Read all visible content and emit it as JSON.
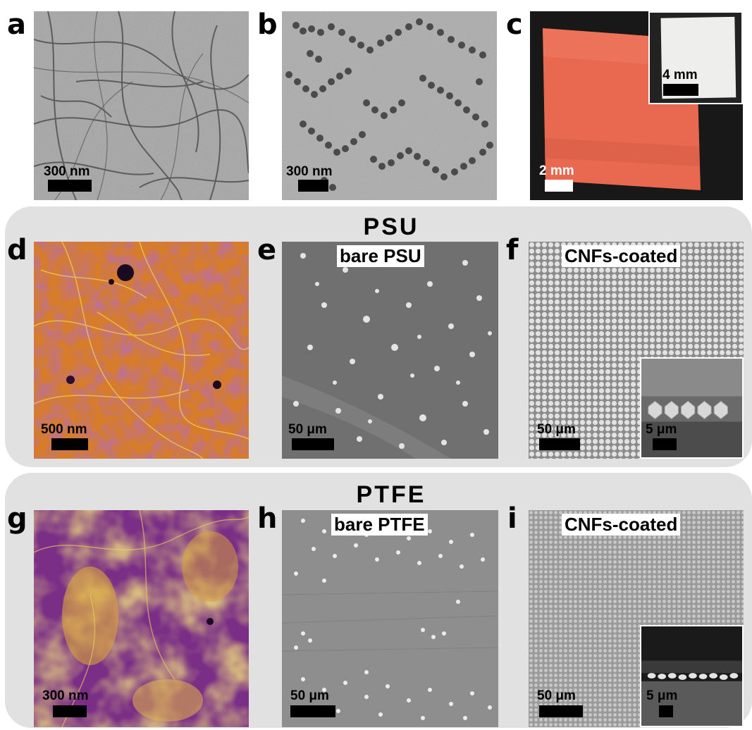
{
  "panels": {
    "a": {
      "label": "a",
      "scale": "300 nm"
    },
    "b": {
      "label": "b",
      "scale": "300 nm"
    },
    "c": {
      "label": "c",
      "scale": "2 mm",
      "inset_scale": "4 mm"
    },
    "d": {
      "label": "d",
      "scale": "500 nm"
    },
    "e": {
      "label": "e",
      "scale": "50 μm",
      "tag": "bare PSU"
    },
    "f": {
      "label": "f",
      "scale": "50 μm",
      "tag": "CNFs-coated",
      "inset_scale": "5 μm"
    },
    "g": {
      "label": "g",
      "scale": "300 nm"
    },
    "h": {
      "label": "h",
      "scale": "50 μm",
      "tag": "bare PTFE"
    },
    "i": {
      "label": "i",
      "scale": "50 μm",
      "tag": "CNFs-coated",
      "inset_scale": "5 μm"
    }
  },
  "groups": {
    "psu": {
      "title": "PSU"
    },
    "ptfe": {
      "title": "PTFE"
    }
  }
}
